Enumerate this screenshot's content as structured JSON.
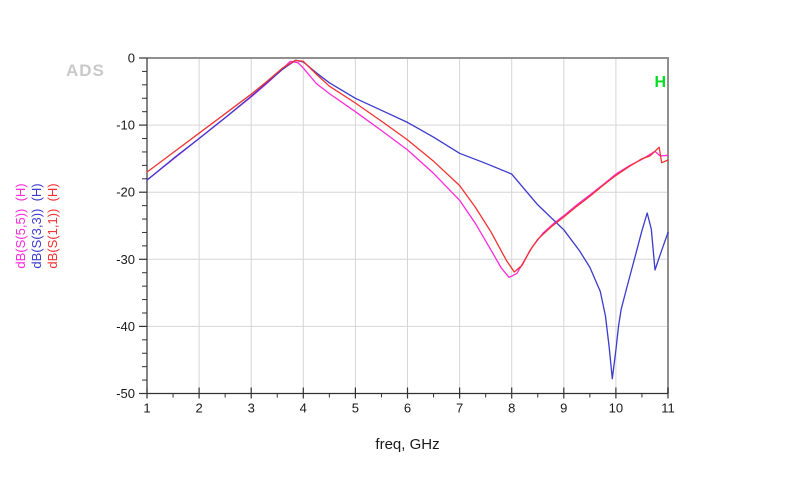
{
  "app": {
    "watermark": "ADS",
    "background_color": "#ffffff"
  },
  "colors": {
    "grid": "#d6d6d6",
    "frame": "#909090",
    "axis": "#333333",
    "tick_text": "#1a1a1a",
    "watermark": "#c9c9c9",
    "marker_green": "#00dd22",
    "trace_magenta": "#ff2ad9",
    "trace_blue": "#3a3ace",
    "trace_red": "#f23131"
  },
  "chart_data": {
    "type": "line",
    "title": "",
    "xlabel": "freq, GHz",
    "ylabel": "",
    "xlim": [
      1,
      11
    ],
    "ylim": [
      -50,
      0
    ],
    "x_major_ticks": [
      1,
      2,
      3,
      4,
      5,
      6,
      7,
      8,
      9,
      10,
      11
    ],
    "x_minor_tick_step": 0.5,
    "y_major_ticks": [
      0,
      -10,
      -20,
      -30,
      -40,
      -50
    ],
    "y_minor_tick_step": 2,
    "grid": "on",
    "legend_position": "left-rotated",
    "marker": {
      "label": "H",
      "color": "#00dd22"
    },
    "series": [
      {
        "name": "dB(S(5,5))",
        "label": "dB(S(5,5))  (H)",
        "color": "#ff2ad9",
        "points": [
          [
            1,
            -18.2
          ],
          [
            1.5,
            -15.1
          ],
          [
            2,
            -12.0
          ],
          [
            2.5,
            -8.9
          ],
          [
            3,
            -5.8
          ],
          [
            3.3,
            -3.8
          ],
          [
            3.55,
            -2.0
          ],
          [
            3.75,
            -0.5
          ],
          [
            3.9,
            -0.7
          ],
          [
            4,
            -1.5
          ],
          [
            4.25,
            -3.8
          ],
          [
            4.5,
            -5.3
          ],
          [
            5,
            -8.0
          ],
          [
            5.5,
            -10.8
          ],
          [
            6,
            -13.7
          ],
          [
            6.5,
            -17.2
          ],
          [
            7,
            -21.2
          ],
          [
            7.3,
            -24.6
          ],
          [
            7.6,
            -28.6
          ],
          [
            7.8,
            -31.3
          ],
          [
            7.95,
            -32.7
          ],
          [
            8.1,
            -32.1
          ],
          [
            8.25,
            -30.1
          ],
          [
            8.4,
            -28.1
          ],
          [
            8.6,
            -26.1
          ],
          [
            8.8,
            -24.7
          ],
          [
            9,
            -23.5
          ],
          [
            9.25,
            -21.9
          ],
          [
            9.5,
            -20.4
          ],
          [
            9.75,
            -18.9
          ],
          [
            10,
            -17.3
          ],
          [
            10.25,
            -16.1
          ],
          [
            10.5,
            -15.1
          ],
          [
            10.65,
            -14.4
          ],
          [
            10.75,
            -13.9
          ],
          [
            10.85,
            -14.6
          ],
          [
            11,
            -14.5
          ]
        ]
      },
      {
        "name": "dB(S(3,3))",
        "label": "dB(S(3,3))  (H)",
        "color": "#3a3ace",
        "points": [
          [
            1,
            -18.2
          ],
          [
            1.5,
            -15.0
          ],
          [
            2,
            -12.0
          ],
          [
            2.5,
            -8.9
          ],
          [
            3,
            -5.7
          ],
          [
            3.3,
            -3.7
          ],
          [
            3.6,
            -1.7
          ],
          [
            3.85,
            -0.35
          ],
          [
            4,
            -0.6
          ],
          [
            4.25,
            -2.2
          ],
          [
            4.5,
            -3.7
          ],
          [
            5,
            -6.0
          ],
          [
            5.5,
            -7.8
          ],
          [
            6,
            -9.6
          ],
          [
            6.5,
            -11.8
          ],
          [
            7,
            -14.2
          ],
          [
            7.5,
            -15.7
          ],
          [
            8,
            -17.3
          ],
          [
            8.5,
            -21.9
          ],
          [
            9,
            -25.6
          ],
          [
            9.3,
            -28.7
          ],
          [
            9.5,
            -31.2
          ],
          [
            9.7,
            -34.8
          ],
          [
            9.8,
            -38.5
          ],
          [
            9.87,
            -43.0
          ],
          [
            9.93,
            -47.8
          ],
          [
            10,
            -43.5
          ],
          [
            10.05,
            -40.0
          ],
          [
            10.1,
            -37.5
          ],
          [
            10.2,
            -34.5
          ],
          [
            10.3,
            -31.6
          ],
          [
            10.4,
            -28.7
          ],
          [
            10.5,
            -25.7
          ],
          [
            10.6,
            -23.1
          ],
          [
            10.68,
            -25.5
          ],
          [
            10.75,
            -31.6
          ],
          [
            10.82,
            -30.0
          ],
          [
            10.9,
            -28.2
          ],
          [
            11,
            -26.0
          ]
        ]
      },
      {
        "name": "dB(S(1,1))",
        "label": "dB(S(1,1))  (H)",
        "color": "#f23131",
        "points": [
          [
            1,
            -17.0
          ],
          [
            1.5,
            -14.1
          ],
          [
            2,
            -11.2
          ],
          [
            2.5,
            -8.3
          ],
          [
            3,
            -5.4
          ],
          [
            3.3,
            -3.5
          ],
          [
            3.6,
            -1.5
          ],
          [
            3.85,
            -0.35
          ],
          [
            4,
            -0.5
          ],
          [
            4.25,
            -2.4
          ],
          [
            4.5,
            -4.2
          ],
          [
            5,
            -6.7
          ],
          [
            5.5,
            -9.4
          ],
          [
            6,
            -12.2
          ],
          [
            6.5,
            -15.4
          ],
          [
            7,
            -19.0
          ],
          [
            7.3,
            -22.2
          ],
          [
            7.6,
            -25.9
          ],
          [
            7.9,
            -30.2
          ],
          [
            8.05,
            -31.9
          ],
          [
            8.2,
            -30.9
          ],
          [
            8.35,
            -28.7
          ],
          [
            8.5,
            -27.0
          ],
          [
            8.75,
            -25.2
          ],
          [
            9,
            -23.7
          ],
          [
            9.25,
            -22.1
          ],
          [
            9.5,
            -20.6
          ],
          [
            9.75,
            -19.0
          ],
          [
            10,
            -17.5
          ],
          [
            10.25,
            -16.2
          ],
          [
            10.5,
            -15.0
          ],
          [
            10.65,
            -14.6
          ],
          [
            10.75,
            -13.9
          ],
          [
            10.83,
            -13.3
          ],
          [
            10.88,
            -15.6
          ],
          [
            11,
            -15.2
          ]
        ]
      }
    ]
  }
}
